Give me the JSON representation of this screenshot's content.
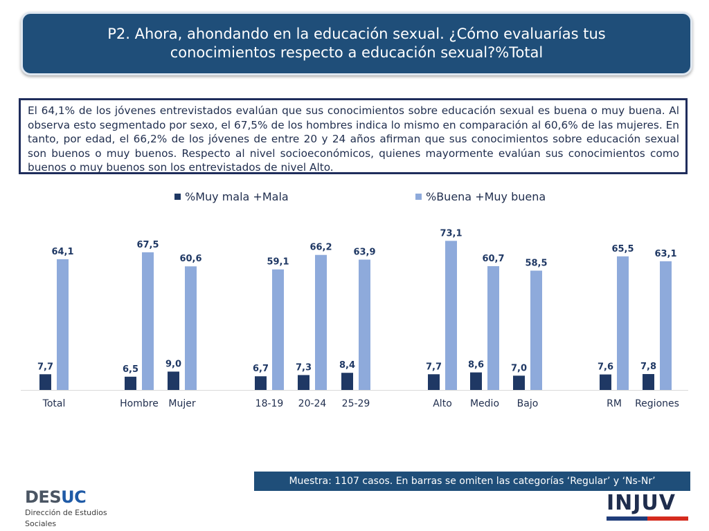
{
  "header": {
    "title": "P2. Ahora, ahondando en la educación sexual. ¿Cómo evaluarías tus conocimientos respecto a educación sexual?%Total"
  },
  "summary": {
    "text": "El 64,1% de los jóvenes entrevistados evalúan que sus conocimientos sobre educación sexual es buena o muy buena. Al observa esto segmentado por sexo, el 67,5% de los hombres indica lo mismo en comparación al 60,6% de las mujeres. En tanto, por edad, el 66,2% de los jóvenes de entre 20 y 24 años afirman que sus conocimientos sobre educación sexual son buenos o muy buenos. Respecto al nivel socioeconómicos, quienes mayormente evalúan sus conocimientos como buenos o muy buenos son los entrevistados de nivel Alto."
  },
  "chart_data": {
    "type": "bar",
    "categories": [
      "Total",
      "Hombre",
      "Mujer",
      "18-19",
      "20-24",
      "25-29",
      "Alto",
      "Medio",
      "Bajo",
      "RM",
      "Regiones"
    ],
    "series": [
      {
        "name": "%Muy mala +Mala",
        "color": "#1f3864",
        "values": [
          7.7,
          6.5,
          9.0,
          6.7,
          7.3,
          8.4,
          7.7,
          8.6,
          7.0,
          7.6,
          7.8
        ],
        "labels": [
          "7,7",
          "6,5",
          "9,0",
          "6,7",
          "7,3",
          "8,4",
          "7,7",
          "8,6",
          "7,0",
          "7,6",
          "7,8"
        ]
      },
      {
        "name": "%Buena +Muy buena",
        "color": "#8eaadb",
        "values": [
          64.1,
          67.5,
          60.6,
          59.1,
          66.2,
          63.9,
          73.1,
          60.7,
          58.5,
          65.5,
          63.1
        ],
        "labels": [
          "64,1",
          "67,5",
          "60,6",
          "59,1",
          "66,2",
          "63,9",
          "73,1",
          "60,7",
          "58,5",
          "65,5",
          "63,1"
        ]
      }
    ],
    "ylim": [
      0,
      80
    ],
    "grid": false,
    "legend": "top"
  },
  "footer": {
    "note": "Muestra: 1107 casos. En barras se omiten las categorías ‘Regular’ y ‘Ns-Nr’"
  },
  "logos": {
    "desuc_brand_a": "DES",
    "desuc_brand_b": "UC",
    "desuc_sub_1": "Dirección de Estudios",
    "desuc_sub_2": "Sociales",
    "injuv": "INJUV"
  }
}
